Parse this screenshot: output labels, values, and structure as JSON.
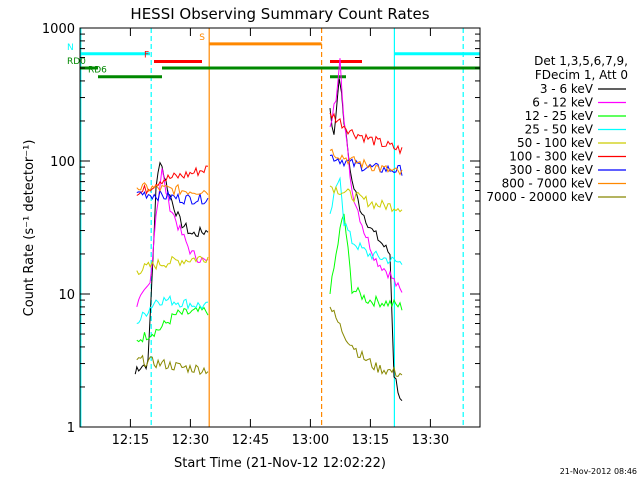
{
  "chart_data": {
    "type": "line",
    "title": "HESSI Observing Summary Count Rates",
    "xlabel": "Start Time (21-Nov-12 12:02:22)",
    "ylabel": "Count Rate (s⁻¹ detector⁻¹)",
    "yscale": "log",
    "xlim": [
      0,
      100
    ],
    "ylim": [
      1,
      1000
    ],
    "x_units": "minutes after 12:02:22",
    "x_ticks": [
      {
        "value": 12.6,
        "label": "12:15"
      },
      {
        "value": 27.6,
        "label": "12:30"
      },
      {
        "value": 42.6,
        "label": "12:45"
      },
      {
        "value": 57.6,
        "label": "13:00"
      },
      {
        "value": 72.6,
        "label": "13:15"
      },
      {
        "value": 87.6,
        "label": "13:30"
      }
    ],
    "y_ticks": [
      {
        "value": 1,
        "label": "1"
      },
      {
        "value": 10,
        "label": "10"
      },
      {
        "value": 100,
        "label": "100"
      },
      {
        "value": 1000,
        "label": "1000"
      }
    ],
    "legend": {
      "position": "right",
      "header": [
        "Det 1,3,5,6,7,9,",
        "FDecim 1, Att 0"
      ]
    },
    "series": [
      {
        "name": "3 - 6 keV",
        "color": "#000000",
        "x": [
          13.8,
          14.2,
          17.0,
          19.0,
          20.0,
          22.0,
          25.0,
          28.0,
          32.0,
          62.5,
          63.5,
          64.8,
          66.0,
          68.0,
          70.0,
          73.0,
          77.5,
          78.5,
          80.5
        ],
        "values": [
          2.5,
          2.8,
          3.0,
          60,
          105,
          60,
          35,
          28,
          30,
          250,
          150,
          450,
          200,
          70,
          45,
          30,
          20,
          2.5,
          1.5
        ]
      },
      {
        "name": "6 - 12 keV",
        "color": "#ff00ff",
        "x": [
          14.2,
          17.5,
          19.0,
          20.5,
          22.0,
          25.0,
          28.0,
          32.0,
          62.5,
          64.0,
          65.0,
          66.0,
          68.0,
          71.0,
          74.0,
          77.5,
          80.5
        ],
        "values": [
          8,
          12,
          40,
          85,
          50,
          30,
          20,
          17,
          180,
          300,
          640,
          200,
          60,
          30,
          18,
          14,
          10
        ]
      },
      {
        "name": "12 - 25 keV",
        "color": "#00ff00",
        "x": [
          14.2,
          20.0,
          24.0,
          32.0,
          62.5,
          65.0,
          66.0,
          68.0,
          72.0,
          77.5,
          80.5
        ],
        "values": [
          4.5,
          5.5,
          7.0,
          7.5,
          10,
          30,
          40,
          11,
          9,
          8.5,
          8
        ]
      },
      {
        "name": "25 - 50 keV",
        "color": "#00ffff",
        "x": [
          14.2,
          19.0,
          22.0,
          27.0,
          32.0,
          62.5,
          65.0,
          66.0,
          68.0,
          72.0,
          77.5,
          80.5
        ],
        "values": [
          6,
          9,
          9,
          8.5,
          8,
          40,
          80,
          35,
          25,
          20,
          18,
          17
        ]
      },
      {
        "name": "50 - 100 keV",
        "color": "#cccc00",
        "x": [
          14.2,
          20.0,
          26.0,
          32.0,
          62.5,
          68.0,
          74.0,
          80.5
        ],
        "values": [
          15,
          17,
          18,
          19,
          65,
          55,
          47,
          45
        ]
      },
      {
        "name": "100 - 300 keV",
        "color": "#ff0000",
        "x": [
          14.2,
          20.0,
          26.0,
          32.0,
          62.5,
          68.0,
          74.0,
          80.5
        ],
        "values": [
          55,
          72,
          78,
          88,
          230,
          165,
          140,
          120
        ]
      },
      {
        "name": "300 - 800 keV",
        "color": "#0000ff",
        "x": [
          14.2,
          20.0,
          26.0,
          32.0,
          62.5,
          68.0,
          74.0,
          80.5
        ],
        "values": [
          58,
          55,
          52,
          52,
          110,
          95,
          88,
          85
        ]
      },
      {
        "name": "800 - 7000 keV",
        "color": "#ff8800",
        "x": [
          14.2,
          20.0,
          26.0,
          32.0,
          62.5,
          68.0,
          74.0,
          80.5
        ],
        "values": [
          63,
          62,
          60,
          60,
          120,
          100,
          90,
          80
        ]
      },
      {
        "name": "7000 - 20000 keV",
        "color": "#888800",
        "x": [
          14.2,
          20.0,
          26.0,
          32.0,
          62.5,
          66.0,
          70.0,
          74.0,
          80.5
        ],
        "values": [
          3.2,
          3.0,
          2.8,
          2.7,
          8,
          5,
          3.5,
          2.8,
          2.5
        ]
      }
    ],
    "flag_segments": [
      {
        "label": "N",
        "color": "#00ffff",
        "ranges": [
          [
            0,
            17.5
          ],
          [
            78.6,
            100
          ]
        ],
        "level": 640
      },
      {
        "label": "F",
        "color": "#ff0000",
        "ranges": [
          [
            18.5,
            30.5
          ],
          [
            62.5,
            70.5
          ]
        ],
        "level": 560
      },
      {
        "label": "S",
        "color": "#ff8800",
        "ranges": [
          [
            32.3,
            60.4
          ]
        ],
        "level": 760
      },
      {
        "label": "RD0",
        "color": "#008800",
        "ranges": [
          [
            0,
            4.5
          ],
          [
            20.5,
            100
          ]
        ],
        "level": 500
      },
      {
        "label": "RD6",
        "color": "#008800",
        "ranges": [
          [
            4.5,
            20.5
          ],
          [
            62.5,
            66.5
          ]
        ],
        "level": 430
      }
    ],
    "vertical_markers": [
      {
        "x": 0.2,
        "color": "#00ffff",
        "style": "solid"
      },
      {
        "x": 17.8,
        "color": "#00ffff",
        "style": "dashed"
      },
      {
        "x": 32.3,
        "color": "#ff8800",
        "style": "solid"
      },
      {
        "x": 60.4,
        "color": "#ff8800",
        "style": "dashed"
      },
      {
        "x": 78.6,
        "color": "#00ffff",
        "style": "solid"
      },
      {
        "x": 95.8,
        "color": "#00ffff",
        "style": "dashed"
      }
    ]
  },
  "footer_timestamp": "21-Nov-2012 08:46"
}
